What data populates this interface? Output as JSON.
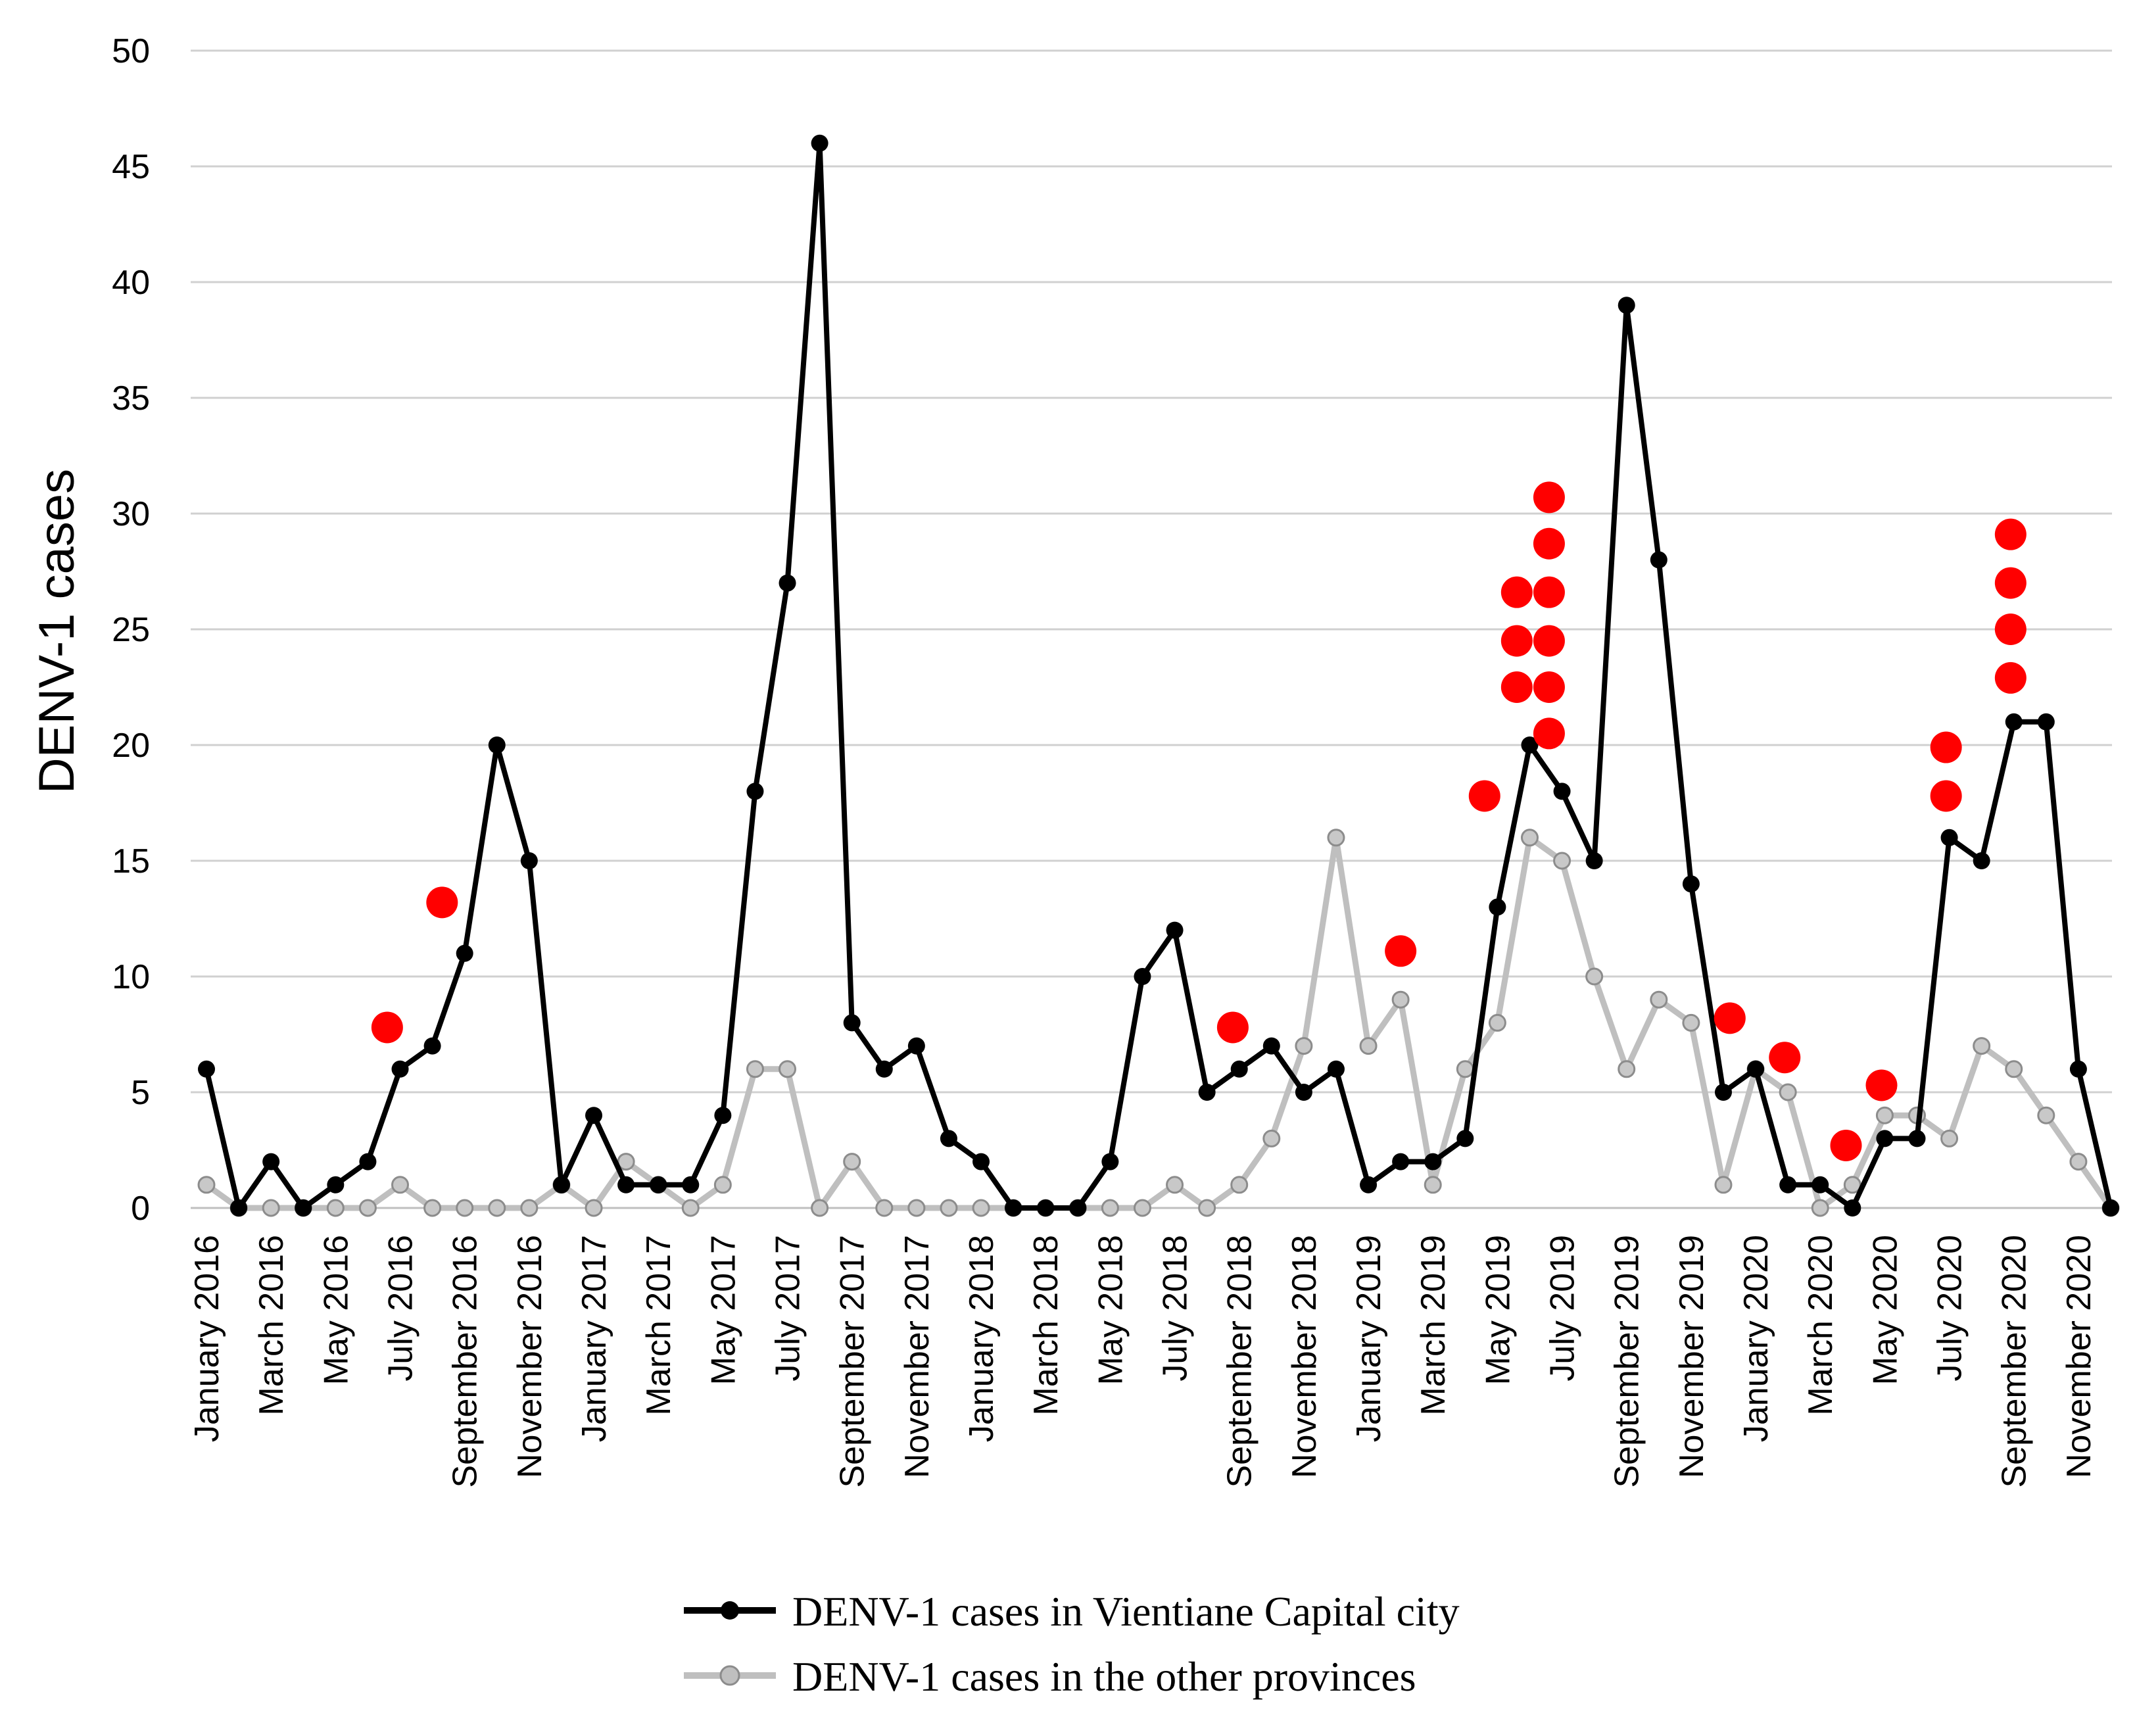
{
  "chart_data": {
    "type": "line",
    "title": "",
    "xlabel": "",
    "ylabel": "DENV-1 cases",
    "ylim": [
      0,
      50
    ],
    "yticks": [
      0,
      5,
      10,
      15,
      20,
      25,
      30,
      35,
      40,
      45,
      50
    ],
    "grid": true,
    "months": [
      "January 2016",
      "February 2016",
      "March 2016",
      "April 2016",
      "May 2016",
      "June 2016",
      "July 2016",
      "August 2016",
      "September 2016",
      "October 2016",
      "November 2016",
      "December 2016",
      "January 2017",
      "February 2017",
      "March 2017",
      "April 2017",
      "May 2017",
      "June 2017",
      "July 2017",
      "August 2017",
      "September 2017",
      "October 2017",
      "November 2017",
      "December 2017",
      "January 2018",
      "February 2018",
      "March 2018",
      "April 2018",
      "May 2018",
      "June 2018",
      "July 2018",
      "August 2018",
      "September 2018",
      "October 2018",
      "November 2018",
      "December 2018",
      "January 2019",
      "February 2019",
      "March 2019",
      "April 2019",
      "May 2019",
      "June 2019",
      "July 2019",
      "August 2019",
      "September 2019",
      "October 2019",
      "November 2019",
      "December 2019",
      "January 2020",
      "February 2020",
      "March 2020",
      "April 2020",
      "May 2020",
      "June 2020",
      "July 2020",
      "August 2020",
      "September 2020",
      "October 2020",
      "November 2020",
      "December 2020"
    ],
    "tick_labels": [
      {
        "index": 0,
        "label": "January 2016"
      },
      {
        "index": 2,
        "label": "March 2016"
      },
      {
        "index": 4,
        "label": "May 2016"
      },
      {
        "index": 6,
        "label": "July 2016"
      },
      {
        "index": 8,
        "label": "September 2016"
      },
      {
        "index": 10,
        "label": "November 2016"
      },
      {
        "index": 12,
        "label": "January 2017"
      },
      {
        "index": 14,
        "label": "March 2017"
      },
      {
        "index": 16,
        "label": "May 2017"
      },
      {
        "index": 18,
        "label": "July 2017"
      },
      {
        "index": 20,
        "label": "September 2017"
      },
      {
        "index": 22,
        "label": "November 2017"
      },
      {
        "index": 24,
        "label": "January 2018"
      },
      {
        "index": 26,
        "label": "March 2018"
      },
      {
        "index": 28,
        "label": "May 2018"
      },
      {
        "index": 30,
        "label": "July 2018"
      },
      {
        "index": 32,
        "label": "September 2018"
      },
      {
        "index": 34,
        "label": "November 2018"
      },
      {
        "index": 36,
        "label": "January 2019"
      },
      {
        "index": 38,
        "label": "March 2019"
      },
      {
        "index": 40,
        "label": "May 2019"
      },
      {
        "index": 42,
        "label": "July 2019"
      },
      {
        "index": 44,
        "label": "September 2019"
      },
      {
        "index": 46,
        "label": "November 2019"
      },
      {
        "index": 48,
        "label": "January 2020"
      },
      {
        "index": 50,
        "label": "March 2020"
      },
      {
        "index": 52,
        "label": "May 2020"
      },
      {
        "index": 54,
        "label": "July 2020"
      },
      {
        "index": 56,
        "label": "September 2020"
      },
      {
        "index": 58,
        "label": "November 2020"
      }
    ],
    "series": [
      {
        "name": "DENV-1 cases in Vientiane Capital city",
        "color": "#000000",
        "values": [
          6,
          0,
          2,
          0,
          1,
          2,
          6,
          7,
          11,
          20,
          15,
          1,
          4,
          1,
          1,
          1,
          4,
          18,
          27,
          46,
          8,
          6,
          7,
          3,
          2,
          0,
          0,
          0,
          2,
          10,
          12,
          5,
          6,
          7,
          5,
          6,
          1,
          2,
          2,
          3,
          13,
          20,
          18,
          15,
          39,
          28,
          14,
          5,
          6,
          1,
          1,
          0,
          3,
          3,
          16,
          15,
          21,
          21,
          6,
          0
        ]
      },
      {
        "name": "DENV-1 cases in the other provinces",
        "color": "#bfbfbf",
        "values": [
          1,
          0,
          0,
          0,
          0,
          0,
          1,
          0,
          0,
          0,
          0,
          1,
          0,
          2,
          1,
          0,
          1,
          6,
          6,
          0,
          2,
          0,
          0,
          0,
          0,
          0,
          0,
          0,
          0,
          0,
          1,
          0,
          1,
          3,
          7,
          16,
          7,
          9,
          1,
          6,
          8,
          16,
          15,
          10,
          6,
          9,
          8,
          1,
          6,
          5,
          0,
          1,
          4,
          4,
          3,
          7,
          6,
          4,
          2,
          0
        ]
      }
    ],
    "markers": {
      "color": "#ff0000",
      "description_points": [
        {
          "month_index": 5.6,
          "y": 7.8
        },
        {
          "month_index": 7.3,
          "y": 13.2
        },
        {
          "month_index": 31.8,
          "y": 7.8
        },
        {
          "month_index": 37.0,
          "y": 11.1
        },
        {
          "month_index": 39.6,
          "y": 17.8
        },
        {
          "month_index": 40.6,
          "y": 22.5
        },
        {
          "month_index": 40.6,
          "y": 24.5
        },
        {
          "month_index": 40.6,
          "y": 26.6
        },
        {
          "month_index": 41.6,
          "y": 20.5
        },
        {
          "month_index": 41.6,
          "y": 22.5
        },
        {
          "month_index": 41.6,
          "y": 24.5
        },
        {
          "month_index": 41.6,
          "y": 26.6
        },
        {
          "month_index": 41.6,
          "y": 28.7
        },
        {
          "month_index": 41.6,
          "y": 30.7
        },
        {
          "month_index": 47.2,
          "y": 8.2
        },
        {
          "month_index": 48.9,
          "y": 6.5
        },
        {
          "month_index": 50.8,
          "y": 2.7
        },
        {
          "month_index": 51.9,
          "y": 5.3
        },
        {
          "month_index": 53.9,
          "y": 17.8
        },
        {
          "month_index": 53.9,
          "y": 19.9
        },
        {
          "month_index": 55.9,
          "y": 22.9
        },
        {
          "month_index": 55.9,
          "y": 25.0
        },
        {
          "month_index": 55.9,
          "y": 27.0
        },
        {
          "month_index": 55.9,
          "y": 29.1
        }
      ]
    }
  }
}
